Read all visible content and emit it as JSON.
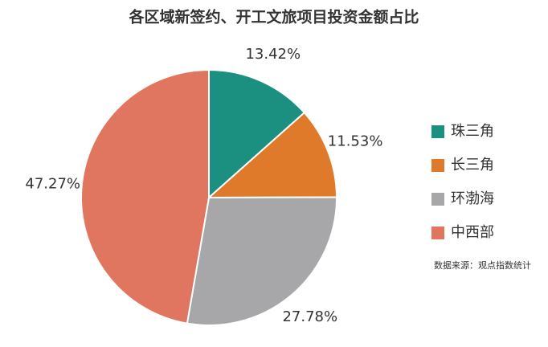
{
  "chart_data": {
    "type": "pie",
    "title": "各区域新签约、开工文旅项目投资金额占比",
    "categories": [
      "珠三角",
      "长三角",
      "环渤海",
      "中西部"
    ],
    "values": [
      13.42,
      11.53,
      27.78,
      47.27
    ],
    "value_labels": [
      "13.42%",
      "11.53%",
      "27.78%",
      "47.27%"
    ],
    "colors": [
      "#1b9080",
      "#e07a2b",
      "#a7a6a9",
      "#e07660"
    ],
    "legend": "right",
    "source": "数据来源：观点指数统计"
  }
}
